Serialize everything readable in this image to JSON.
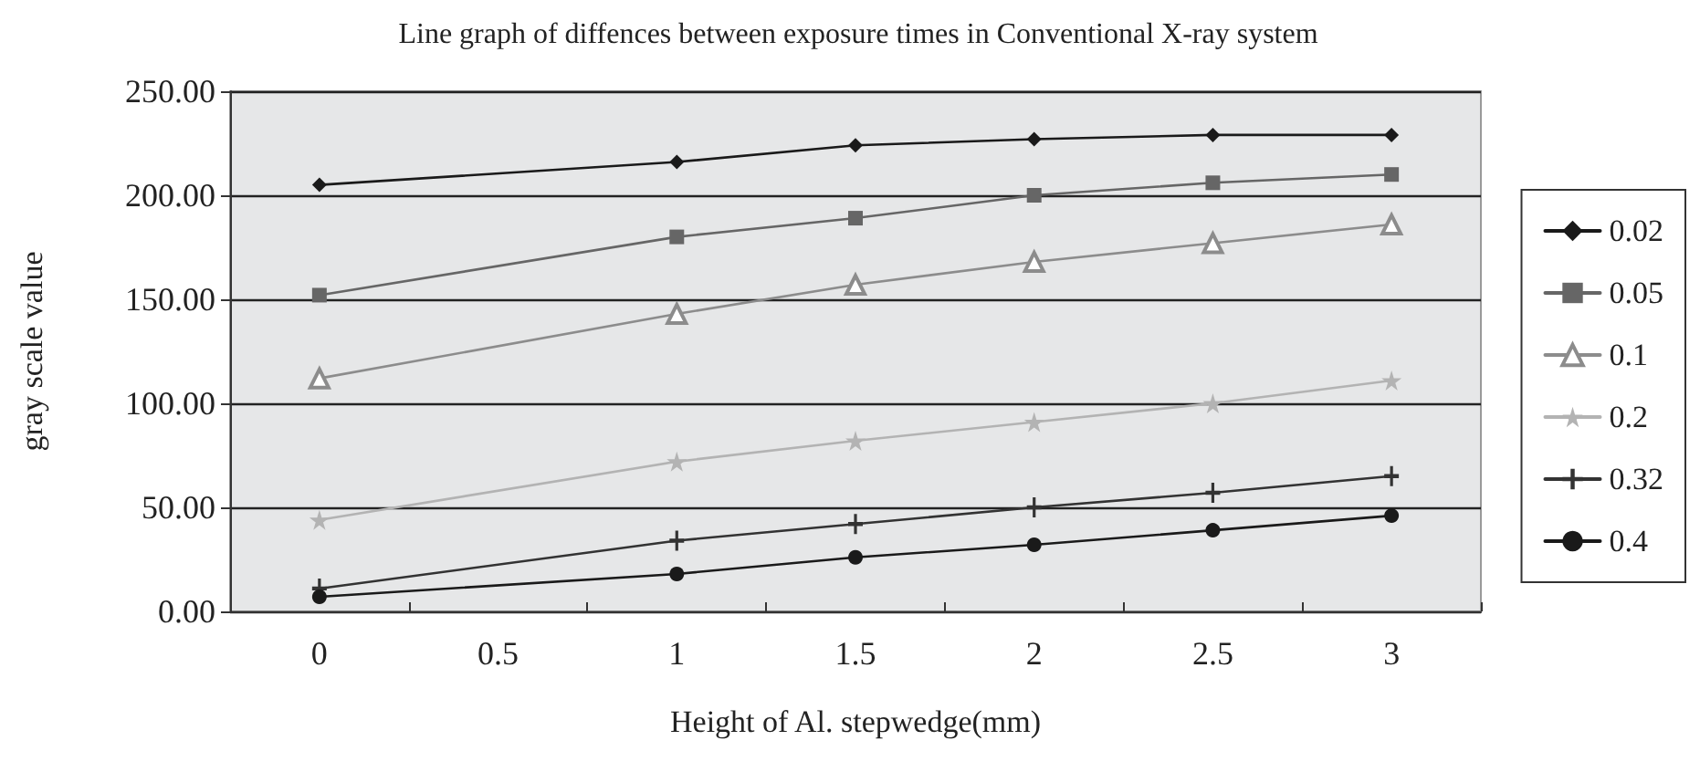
{
  "chart_data": {
    "type": "line",
    "title": "Line graph of diffences between exposure times in Conventional X-ray system",
    "xlabel": "Height of Al. stepwedge(mm)",
    "ylabel": "gray scale value",
    "categories": [
      "0",
      "0.5",
      "1",
      "1.5",
      "2",
      "2.5",
      "3"
    ],
    "series": [
      {
        "name": "0.02",
        "color": "#1a1a1a",
        "marker": "diamond",
        "values": [
          205,
          null,
          216,
          224,
          227,
          229,
          229
        ]
      },
      {
        "name": "0.05",
        "color": "#666666",
        "marker": "square",
        "values": [
          152,
          null,
          180,
          189,
          200,
          206,
          210
        ]
      },
      {
        "name": "0.1",
        "color": "#8c8c8c",
        "marker": "triangle",
        "values": [
          112,
          null,
          143,
          157,
          168,
          177,
          186
        ]
      },
      {
        "name": "0.2",
        "color": "#b3b3b3",
        "marker": "star",
        "values": [
          44,
          null,
          72,
          82,
          91,
          100,
          111
        ]
      },
      {
        "name": "0.32",
        "color": "#333333",
        "marker": "cross",
        "values": [
          11,
          null,
          34,
          42,
          50,
          57,
          65
        ]
      },
      {
        "name": "0.4",
        "color": "#1a1a1a",
        "marker": "circle",
        "values": [
          7,
          null,
          18,
          26,
          32,
          39,
          46
        ]
      }
    ],
    "ylim": [
      0,
      250
    ],
    "yticks": [
      {
        "value": 0,
        "label": "0.00"
      },
      {
        "value": 50,
        "label": "50.00"
      },
      {
        "value": 100,
        "label": "100.00"
      },
      {
        "value": 150,
        "label": "150.00"
      },
      {
        "value": 200,
        "label": "200.00"
      },
      {
        "value": 250,
        "label": "250.00"
      }
    ],
    "grid": "y",
    "legend": "right",
    "line_style": "solid"
  }
}
